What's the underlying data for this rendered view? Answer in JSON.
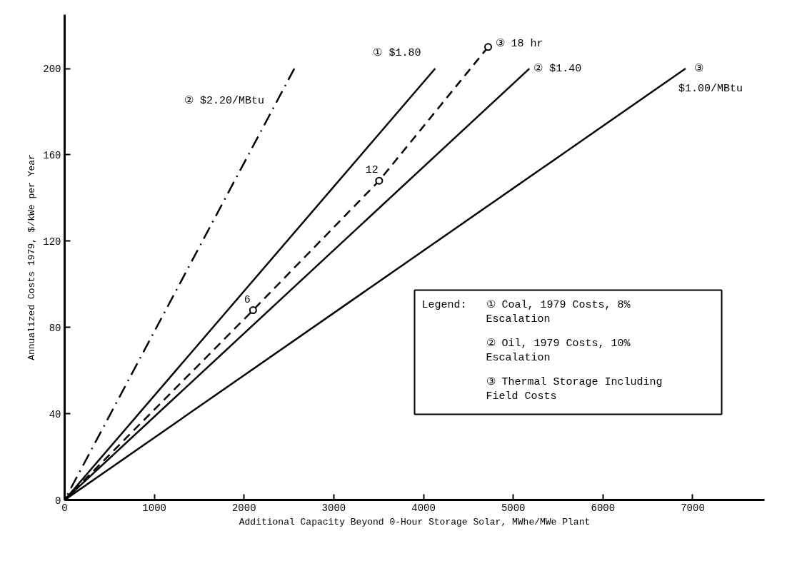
{
  "chart_data": {
    "type": "line",
    "xlabel": "Additional Capacity Beyond 0-Hour Storage Solar, MWhe/MWe Plant",
    "ylabel": "Annualized Costs 1979, $/kWe per Year",
    "xlim": [
      0,
      7800
    ],
    "ylim": [
      0,
      225
    ],
    "xticks": [
      0,
      1000,
      2000,
      3000,
      4000,
      5000,
      6000,
      7000
    ],
    "yticks": [
      0,
      40,
      80,
      120,
      160,
      200
    ],
    "series": [
      {
        "color": "#000000",
        "line_style": "dashdot",
        "x": [
          0,
          2560
        ],
        "values": [
          0,
          200
        ]
      },
      {
        "color": "#000000",
        "line_style": "solid",
        "x": [
          0,
          4130
        ],
        "values": [
          0,
          200
        ]
      },
      {
        "color": "#000000",
        "line_style": "dashed",
        "marker": "circle",
        "x": [
          0,
          2100,
          3505,
          4720
        ],
        "values": [
          0,
          88,
          148,
          210
        ]
      },
      {
        "color": "#000000",
        "line_style": "solid",
        "x": [
          0,
          5180
        ],
        "values": [
          0,
          200
        ]
      },
      {
        "color": "#000000",
        "line_style": "solid",
        "x": [
          0,
          6920
        ],
        "values": [
          0,
          200
        ]
      }
    ],
    "annotations": [
      {
        "text": "② $2.20/MBtu",
        "x": 2368,
        "y": 185
      },
      {
        "text": "① $1.80",
        "x": 4130,
        "y": 200
      },
      {
        "text": "③ 18 hr",
        "x": 4720,
        "y": 210
      },
      {
        "text": "② $1.40",
        "x": 5180,
        "y": 200
      },
      {
        "text": "③",
        "x": 6920,
        "y": 200
      },
      {
        "text": "$1.00/MBtu",
        "x": 6920,
        "y": 200
      },
      {
        "text": "6",
        "x": 2100,
        "y": 88
      },
      {
        "text": "12",
        "x": 3505,
        "y": 148
      },
      "Legend:",
      "① Coal, 1979 Costs, 8% Escalation",
      "② Oil, 1979 Costs, 10% Escalation",
      "③ Thermal Storage Including Field Costs"
    ]
  }
}
